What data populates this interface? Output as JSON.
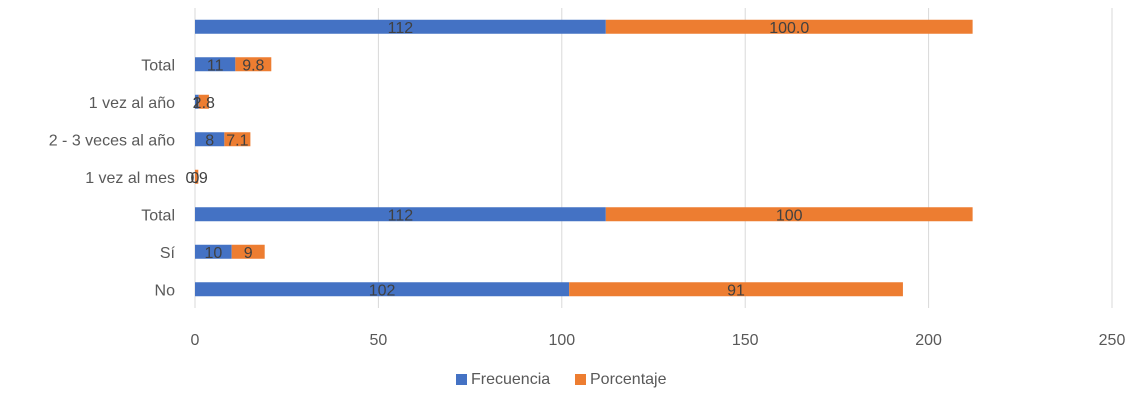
{
  "chart_data": {
    "type": "bar",
    "orientation": "horizontal",
    "stacked": true,
    "categories": [
      "No",
      "Sí",
      "Total",
      "1 vez al mes",
      "2 - 3 veces al año",
      "1 vez al año",
      "Total",
      ""
    ],
    "series": [
      {
        "name": "Frecuencia",
        "color": "#4472C4",
        "values": [
          102,
          10,
          112,
          0,
          8,
          1,
          11,
          112
        ],
        "labels": [
          "102",
          "10",
          "112",
          "0",
          "8",
          "1",
          "11",
          "112"
        ]
      },
      {
        "name": "Porcentaje",
        "color": "#ED7D31",
        "values": [
          91,
          9,
          100,
          0.9,
          7.1,
          2.8,
          9.8,
          100.0
        ],
        "labels": [
          "91",
          "9",
          "100",
          "0.9",
          "7.1",
          "2.8",
          "9.8",
          "100.0"
        ]
      }
    ],
    "xlim": [
      0,
      250
    ],
    "x_ticks": [
      0,
      50,
      100,
      150,
      200,
      250
    ],
    "grid": true,
    "legend_position": "bottom"
  }
}
